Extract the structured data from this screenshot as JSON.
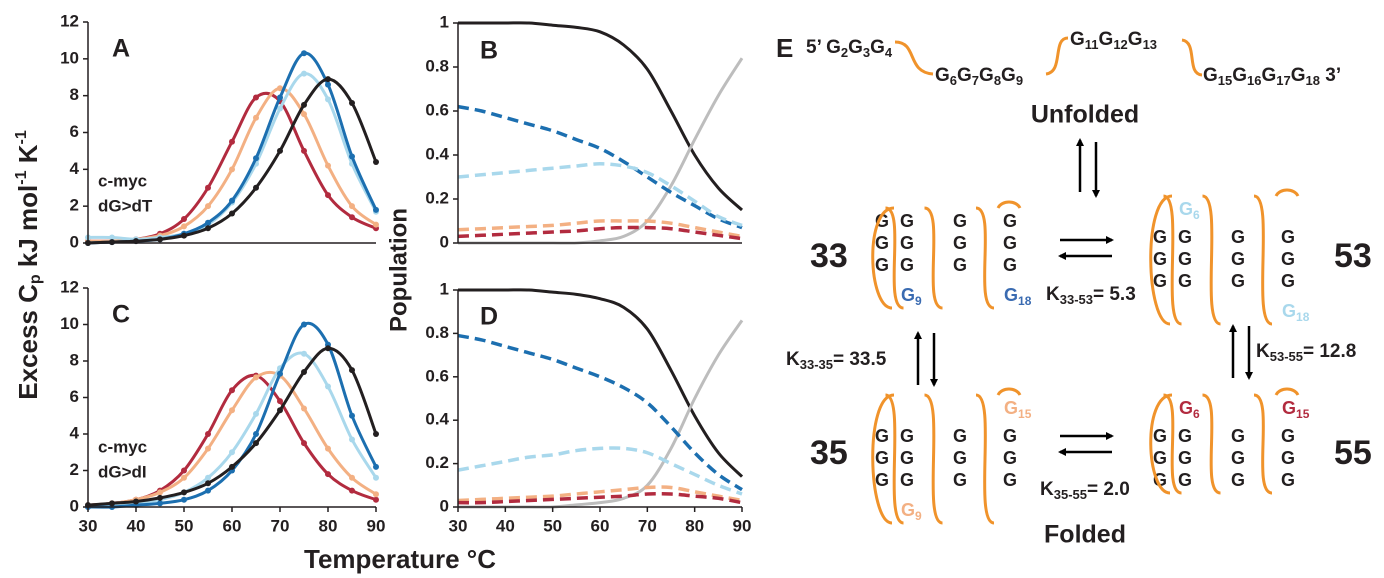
{
  "axis_labels": {
    "y_left": [
      {
        "text": "Excess C"
      },
      {
        "text": "p",
        "sub": true
      },
      {
        "text": " kJ mol"
      },
      {
        "text": "-1",
        "sup": true
      },
      {
        "text": " K"
      },
      {
        "text": "-1",
        "sup": true
      }
    ],
    "y_right": "Population",
    "x": "Temperature °C"
  },
  "chart_data": [
    {
      "type": "line",
      "panel": "A",
      "annotation": [
        "c-myc",
        "dG>dT"
      ],
      "markers": true,
      "x": [
        30,
        35,
        40,
        45,
        50,
        55,
        60,
        65,
        70,
        75,
        80,
        85,
        90
      ],
      "xlim": [
        30,
        90
      ],
      "ylim": [
        0,
        12
      ],
      "yticks": [
        0,
        2,
        4,
        6,
        8,
        10,
        12
      ],
      "series": [
        {
          "color": "#b22b3f",
          "values": [
            0.1,
            0.1,
            0.2,
            0.5,
            1.3,
            3,
            5.5,
            7.9,
            7.7,
            5,
            2.6,
            1.4,
            0.8
          ]
        },
        {
          "color": "#f3b083",
          "values": [
            0.1,
            0.1,
            0.2,
            0.4,
            0.9,
            2,
            4,
            6.8,
            8.4,
            7,
            4.2,
            2,
            1
          ]
        },
        {
          "color": "#a9d8ec",
          "values": [
            0.3,
            0.3,
            0.2,
            0.3,
            0.5,
            1,
            2.2,
            4.3,
            7.3,
            9.2,
            7.8,
            4.3,
            1.7
          ]
        },
        {
          "color": "#1c6fb0",
          "values": [
            0,
            0.05,
            0.1,
            0.2,
            0.5,
            1.1,
            2.3,
            4.6,
            7.9,
            10.3,
            8.6,
            4.7,
            1.8
          ]
        },
        {
          "color": "#231f20",
          "values": [
            0,
            0.05,
            0.1,
            0.2,
            0.4,
            0.8,
            1.6,
            3,
            5,
            7.5,
            8.9,
            7.6,
            4.4
          ]
        }
      ]
    },
    {
      "type": "line",
      "panel": "B",
      "markers": false,
      "x": [
        30,
        35,
        40,
        45,
        50,
        55,
        60,
        65,
        70,
        75,
        80,
        85,
        90
      ],
      "xlim": [
        30,
        90
      ],
      "ylim": [
        0,
        1
      ],
      "yticks": [
        0,
        0.2,
        0.4,
        0.6,
        0.8,
        1
      ],
      "series": [
        {
          "color": "#231f20",
          "dashed": false,
          "values": [
            1,
            1,
            1,
            1,
            0.99,
            0.98,
            0.96,
            0.9,
            0.79,
            0.6,
            0.4,
            0.25,
            0.15
          ]
        },
        {
          "color": "#bdbdbd",
          "dashed": false,
          "values": [
            0,
            0,
            0,
            0,
            0,
            0,
            0.01,
            0.03,
            0.1,
            0.26,
            0.47,
            0.67,
            0.84
          ]
        },
        {
          "color": "#1c6fb0",
          "dashed": true,
          "values": [
            0.62,
            0.6,
            0.57,
            0.54,
            0.51,
            0.47,
            0.43,
            0.37,
            0.3,
            0.23,
            0.17,
            0.11,
            0.07
          ]
        },
        {
          "color": "#a9d8ec",
          "dashed": true,
          "values": [
            0.3,
            0.31,
            0.32,
            0.33,
            0.34,
            0.35,
            0.36,
            0.35,
            0.32,
            0.26,
            0.19,
            0.12,
            0.08
          ]
        },
        {
          "color": "#f3b083",
          "dashed": true,
          "values": [
            0.06,
            0.065,
            0.07,
            0.075,
            0.08,
            0.09,
            0.1,
            0.1,
            0.1,
            0.09,
            0.07,
            0.05,
            0.03
          ]
        },
        {
          "color": "#b22b3f",
          "dashed": true,
          "values": [
            0.03,
            0.035,
            0.04,
            0.045,
            0.05,
            0.055,
            0.065,
            0.07,
            0.07,
            0.065,
            0.05,
            0.035,
            0.02
          ]
        }
      ]
    },
    {
      "type": "line",
      "panel": "C",
      "annotation": [
        "c-myc",
        "dG>dI"
      ],
      "markers": true,
      "x": [
        30,
        35,
        40,
        45,
        50,
        55,
        60,
        65,
        70,
        75,
        80,
        85,
        90
      ],
      "xlim": [
        30,
        90
      ],
      "xticks": [
        30,
        40,
        50,
        60,
        70,
        80,
        90
      ],
      "ylim": [
        0,
        12
      ],
      "yticks": [
        0,
        2,
        4,
        6,
        8,
        10,
        12
      ],
      "series": [
        {
          "color": "#b22b3f",
          "values": [
            0.1,
            0.2,
            0.4,
            0.9,
            2,
            4,
            6.4,
            7.2,
            5.8,
            3.5,
            1.8,
            0.9,
            0.4
          ]
        },
        {
          "color": "#f3b083",
          "values": [
            0.1,
            0.2,
            0.4,
            0.8,
            1.6,
            3.2,
            5.3,
            7.1,
            7.2,
            5.4,
            3.2,
            1.6,
            0.7
          ]
        },
        {
          "color": "#a9d8ec",
          "values": [
            0.1,
            0.1,
            0.2,
            0.4,
            0.8,
            1.6,
            3,
            5.1,
            7.6,
            8.4,
            6.6,
            3.7,
            1.6
          ]
        },
        {
          "color": "#1c6fb0",
          "values": [
            0,
            0,
            0.1,
            0.2,
            0.4,
            0.9,
            2,
            4,
            7.3,
            10,
            8.9,
            5,
            2.2
          ]
        },
        {
          "color": "#231f20",
          "values": [
            0.1,
            0.2,
            0.3,
            0.5,
            0.8,
            1.3,
            2.2,
            3.5,
            5.3,
            7.4,
            8.7,
            7.5,
            4
          ]
        }
      ]
    },
    {
      "type": "line",
      "panel": "D",
      "markers": false,
      "x": [
        30,
        35,
        40,
        45,
        50,
        55,
        60,
        65,
        70,
        75,
        80,
        85,
        90
      ],
      "xlim": [
        30,
        90
      ],
      "xticks": [
        30,
        40,
        50,
        60,
        70,
        80,
        90
      ],
      "ylim": [
        0,
        1
      ],
      "yticks": [
        0,
        0.2,
        0.4,
        0.6,
        0.8,
        1
      ],
      "series": [
        {
          "color": "#231f20",
          "dashed": false,
          "values": [
            1,
            1,
            1,
            1,
            0.99,
            0.98,
            0.96,
            0.92,
            0.82,
            0.63,
            0.42,
            0.25,
            0.14
          ]
        },
        {
          "color": "#bdbdbd",
          "dashed": false,
          "values": [
            0,
            0,
            0,
            0,
            0,
            0.01,
            0.02,
            0.04,
            0.1,
            0.27,
            0.5,
            0.7,
            0.86
          ]
        },
        {
          "color": "#1c6fb0",
          "dashed": true,
          "values": [
            0.79,
            0.77,
            0.74,
            0.71,
            0.68,
            0.64,
            0.6,
            0.55,
            0.48,
            0.37,
            0.25,
            0.15,
            0.08
          ]
        },
        {
          "color": "#a9d8ec",
          "dashed": true,
          "values": [
            0.17,
            0.19,
            0.21,
            0.23,
            0.24,
            0.26,
            0.27,
            0.27,
            0.25,
            0.2,
            0.15,
            0.1,
            0.06
          ]
        },
        {
          "color": "#f3b083",
          "dashed": true,
          "values": [
            0.03,
            0.035,
            0.04,
            0.045,
            0.05,
            0.06,
            0.07,
            0.08,
            0.09,
            0.09,
            0.07,
            0.05,
            0.03
          ]
        },
        {
          "color": "#b22b3f",
          "dashed": true,
          "values": [
            0.02,
            0.02,
            0.025,
            0.03,
            0.035,
            0.04,
            0.045,
            0.05,
            0.06,
            0.06,
            0.05,
            0.04,
            0.02
          ]
        }
      ]
    }
  ],
  "diagram": {
    "label": "E",
    "strand": [
      {
        "prefix": "5’ ",
        "items": [
          {
            "text": "G",
            "sub": "2"
          },
          {
            "text": "G",
            "sub": "3"
          },
          {
            "text": "G",
            "sub": "4"
          }
        ]
      },
      {
        "items": [
          {
            "text": "G",
            "sub": "6"
          },
          {
            "text": "G",
            "sub": "7"
          },
          {
            "text": "G",
            "sub": "8"
          },
          {
            "text": "G",
            "sub": "9"
          }
        ]
      },
      {
        "items": [
          {
            "text": "G",
            "sub": "11"
          },
          {
            "text": "G",
            "sub": "12"
          },
          {
            "text": "G",
            "sub": "13"
          }
        ]
      },
      {
        "items": [
          {
            "text": "G",
            "sub": "15"
          },
          {
            "text": "G",
            "sub": "16"
          },
          {
            "text": "G",
            "sub": "17"
          },
          {
            "text": "G",
            "sub": "18"
          }
        ],
        "suffix": " 3’"
      }
    ],
    "unfolded": "Unfolded",
    "folded": "Folded",
    "states": [
      {
        "label": "33",
        "columns": [
          [
            "G",
            "G",
            "G"
          ],
          [
            "G",
            "G",
            "G",
            {
              "text": "G",
              "sub": "9",
              "color": "#3a6bb1"
            }
          ],
          [
            "G",
            "G",
            "G"
          ],
          [
            "G",
            "G",
            "G",
            {
              "text": "G",
              "sub": "18",
              "color": "#3a6bb1"
            }
          ]
        ]
      },
      {
        "label": "53",
        "columns": [
          [
            "G",
            "G",
            "G"
          ],
          [
            {
              "text": "G",
              "sub": "6",
              "color": "#a9d8ec"
            },
            "G",
            "G",
            "G"
          ],
          [
            "G",
            "G",
            "G"
          ],
          [
            "G",
            "G",
            "G",
            {
              "text": "G",
              "sub": "18",
              "color": "#a9d8ec"
            }
          ]
        ]
      },
      {
        "label": "35",
        "columns": [
          [
            "G",
            "G",
            "G"
          ],
          [
            "G",
            "G",
            "G",
            {
              "text": "G",
              "sub": "9",
              "color": "#f3b083"
            }
          ],
          [
            "G",
            "G",
            "G"
          ],
          [
            {
              "text": "G",
              "sub": "15",
              "color": "#f3b083"
            },
            "G",
            "G",
            "G"
          ]
        ]
      },
      {
        "label": "55",
        "columns": [
          [
            "G",
            "G",
            "G"
          ],
          [
            {
              "text": "G",
              "sub": "6",
              "color": "#b22b3f"
            },
            "G",
            "G",
            "G"
          ],
          [
            "G",
            "G",
            "G"
          ],
          [
            {
              "text": "G",
              "sub": "15",
              "color": "#b22b3f"
            },
            "G",
            "G",
            "G"
          ]
        ]
      }
    ],
    "constants": [
      {
        "text": "K",
        "sub": "33-53",
        "value": "= 5.3"
      },
      {
        "text": "K",
        "sub": "33-35",
        "value": "= 33.5"
      },
      {
        "text": "K",
        "sub": "53-55",
        "value": "= 12.8"
      },
      {
        "text": "K",
        "sub": "35-55",
        "value": "= 2.0"
      }
    ]
  }
}
